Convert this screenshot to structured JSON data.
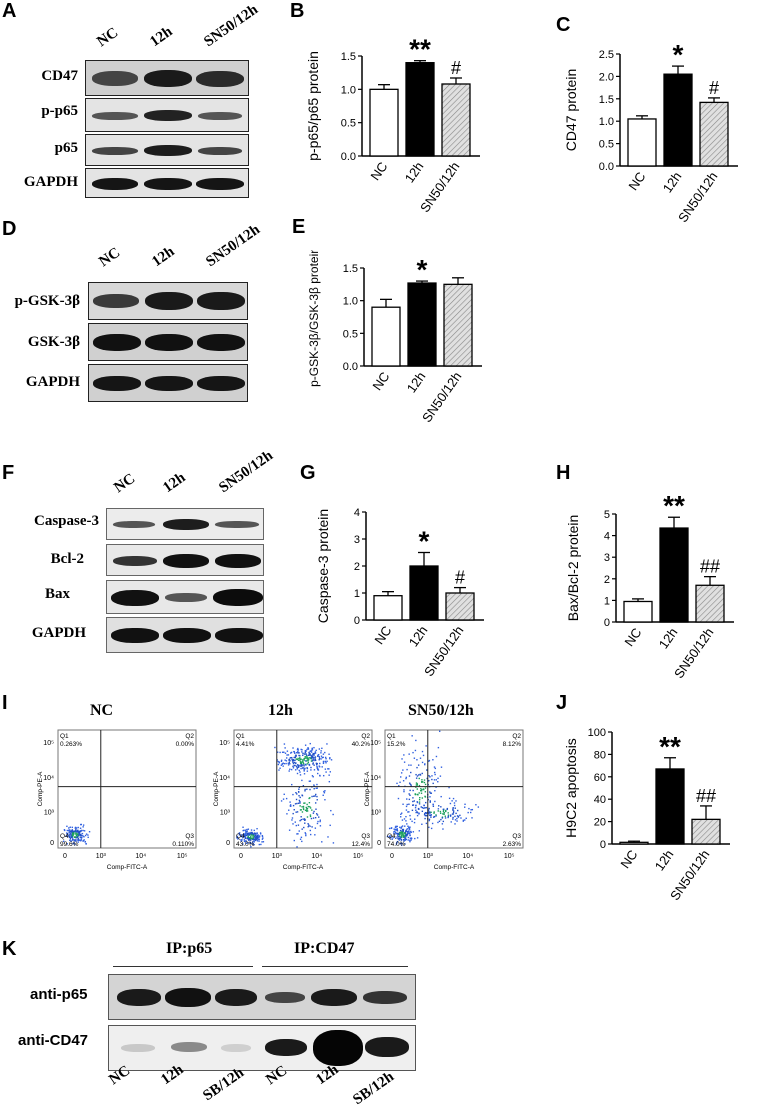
{
  "panels": {
    "A": {
      "letter": "A",
      "columns": [
        "NC",
        "12h",
        "SN50/12h"
      ],
      "rows": [
        "CD47",
        "p-p65",
        "p65",
        "GAPDH"
      ]
    },
    "D": {
      "letter": "D",
      "columns": [
        "NC",
        "12h",
        "SN50/12h"
      ],
      "rows": [
        "p-GSK-3β",
        "GSK-3β",
        "GAPDH"
      ]
    },
    "F": {
      "letter": "F",
      "columns": [
        "NC",
        "12h",
        "SN50/12h"
      ],
      "rows": [
        "Caspase-3",
        "Bcl-2",
        "Bax",
        "GAPDH"
      ]
    },
    "I": {
      "letter": "I",
      "plots": [
        {
          "title": "NC",
          "q1": "Q1",
          "q1v": "0.263%",
          "q2": "Q2",
          "q2v": "0.00%",
          "q3": "Q3",
          "q3v": "0.110%",
          "q4": "Q4",
          "q4v": "99.6%"
        },
        {
          "title": "12h",
          "q1": "Q1",
          "q1v": "4.41%",
          "q2": "Q2",
          "q2v": "40.2%",
          "q3": "Q3",
          "q3v": "12.4%",
          "q4": "Q4",
          "q4v": "43.0%"
        },
        {
          "title": "SN50/12h",
          "q1": "Q1",
          "q1v": "15.2%",
          "q2": "Q2",
          "q2v": "8.12%",
          "q3": "Q3",
          "q3v": "2.63%",
          "q4": "Q4",
          "q4v": "74.0%"
        }
      ],
      "xaxis": "Comp-FITC-A",
      "yaxis": "Comp-PE-A",
      "ticks": [
        "0",
        "10³",
        "10⁴",
        "10⁵"
      ]
    },
    "K": {
      "letter": "K",
      "ip_groups": [
        "IP:p65",
        "IP:CD47"
      ],
      "rows": [
        "anti-p65",
        "anti-CD47"
      ],
      "columns": [
        "NC",
        "12h",
        "SB/12h",
        "NC",
        "12h",
        "SB/12h"
      ]
    }
  },
  "colors": {
    "nc": "#ffffff",
    "h12": "#000000",
    "sn50": "#cccccc"
  },
  "chart_data": [
    {
      "id": "B",
      "letter": "B",
      "type": "bar",
      "categories": [
        "NC",
        "12h",
        "SN50/12h"
      ],
      "values": [
        1.0,
        1.4,
        1.08
      ],
      "errors": [
        0.07,
        0.03,
        0.09
      ],
      "ylabel": "p-p65/p65 protein",
      "ylim": [
        0,
        1.5
      ],
      "yticks": [
        "0.0",
        "0.5",
        "1.0",
        "1.5"
      ],
      "annotations": [
        "",
        "**",
        "#"
      ]
    },
    {
      "id": "C",
      "letter": "C",
      "type": "bar",
      "categories": [
        "NC",
        "12h",
        "SN50/12h"
      ],
      "values": [
        1.05,
        2.05,
        1.42
      ],
      "errors": [
        0.07,
        0.18,
        0.1
      ],
      "ylabel": "CD47 protein",
      "ylim": [
        0,
        2.5
      ],
      "yticks": [
        "0.0",
        "0.5",
        "1.0",
        "1.5",
        "2.0",
        "2.5"
      ],
      "annotations": [
        "",
        "*",
        "#"
      ]
    },
    {
      "id": "E",
      "letter": "E",
      "type": "bar",
      "categories": [
        "NC",
        "12h",
        "SN50/12h"
      ],
      "values": [
        0.9,
        1.27,
        1.25
      ],
      "errors": [
        0.12,
        0.03,
        0.1
      ],
      "ylabel": "p-GSK-3β/GSK-3β protein",
      "ylim": [
        0,
        1.5
      ],
      "yticks": [
        "0.0",
        "0.5",
        "1.0",
        "1.5"
      ],
      "annotations": [
        "",
        "*",
        ""
      ]
    },
    {
      "id": "G",
      "letter": "G",
      "type": "bar",
      "categories": [
        "NC",
        "12h",
        "SN50/12h"
      ],
      "values": [
        0.9,
        2.0,
        1.0
      ],
      "errors": [
        0.15,
        0.5,
        0.2
      ],
      "ylabel": "Caspase-3 protein",
      "ylim": [
        0,
        4
      ],
      "yticks": [
        "0",
        "1",
        "2",
        "3",
        "4"
      ],
      "annotations": [
        "",
        "*",
        "#"
      ]
    },
    {
      "id": "H",
      "letter": "H",
      "type": "bar",
      "categories": [
        "NC",
        "12h",
        "SN50/12h"
      ],
      "values": [
        0.95,
        4.35,
        1.7
      ],
      "errors": [
        0.12,
        0.5,
        0.4
      ],
      "ylabel": "Bax/Bcl-2 protein",
      "ylim": [
        0,
        5
      ],
      "yticks": [
        "0",
        "1",
        "2",
        "3",
        "4",
        "5"
      ],
      "annotations": [
        "",
        "**",
        "##"
      ]
    },
    {
      "id": "J",
      "letter": "J",
      "type": "bar",
      "categories": [
        "NC",
        "12h",
        "SN50/12h"
      ],
      "values": [
        1.5,
        67,
        22
      ],
      "errors": [
        1,
        10,
        12
      ],
      "ylabel": "H9C2 apoptosis",
      "ylim": [
        0,
        100
      ],
      "yticks": [
        "0",
        "20",
        "40",
        "60",
        "80",
        "100"
      ],
      "annotations": [
        "",
        "**",
        "##"
      ]
    }
  ]
}
